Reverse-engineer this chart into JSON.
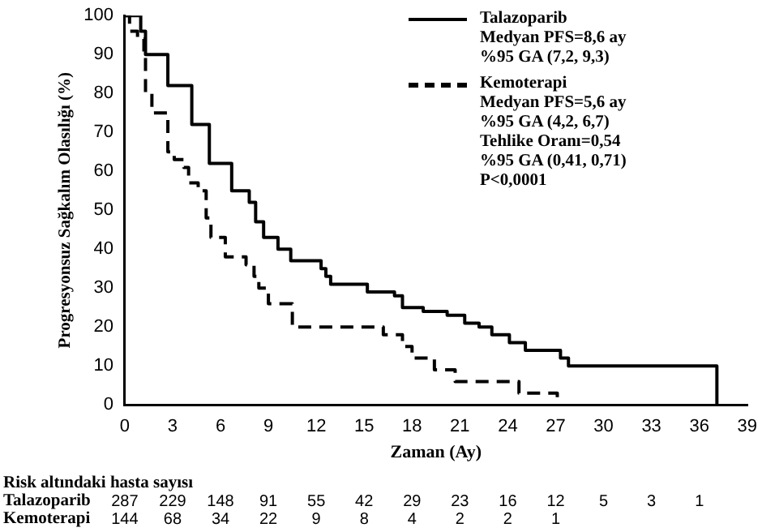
{
  "chart_data": {
    "type": "step",
    "xlabel": "Zaman (Ay)",
    "ylabel": "Progresyonsuz Sağkalım Olasılığı (%)",
    "series": [
      {
        "name": "Talazoparib",
        "color": "#000000",
        "line_style": "solid",
        "x": [
          0,
          1.0,
          1.3,
          2.7,
          4.2,
          5.3,
          6.7,
          7.8,
          8.2,
          8.7,
          9.6,
          10.4,
          12.3,
          12.6,
          12.9,
          15.2,
          16.9,
          17.4,
          18.7,
          20.2,
          21.3,
          22.2,
          23.0,
          24.1,
          25.1,
          27.3,
          27.8,
          37.1
        ],
        "values": [
          100,
          96,
          90,
          82,
          72,
          62,
          55,
          52,
          47,
          43,
          40,
          37,
          35,
          33,
          31,
          29,
          28,
          25,
          24,
          23,
          21,
          20,
          18,
          16,
          14,
          12,
          10,
          0
        ]
      },
      {
        "name": "Kemoterapi",
        "color": "#000000",
        "line_style": "dashed",
        "x": [
          0,
          0.3,
          0.8,
          1.2,
          1.3,
          1.7,
          2.7,
          3.1,
          3.7,
          4.0,
          4.6,
          5.1,
          5.4,
          6.3,
          7.6,
          8.1,
          8.4,
          9.0,
          10.5,
          16.2,
          17.4,
          18.0,
          19.4,
          20.7,
          24.7,
          27.1
        ],
        "values": [
          100,
          96,
          94,
          90,
          80,
          75,
          65,
          63,
          61,
          57,
          55,
          48,
          43,
          38,
          36,
          33,
          30,
          26,
          20,
          18,
          15,
          12,
          9,
          6,
          3,
          1
        ]
      }
    ],
    "xlim": [
      0,
      39
    ],
    "xticks": [
      0,
      3,
      6,
      9,
      12,
      15,
      18,
      21,
      24,
      27,
      30,
      33,
      36,
      39
    ],
    "ylim": [
      0,
      100
    ],
    "yticks": [
      0,
      10,
      20,
      30,
      40,
      50,
      60,
      70,
      80,
      90,
      100
    ],
    "grid": false,
    "legend": "top right",
    "marker": "none",
    "annotations": [
      "Medyan PFS=8,6 ay",
      "%95 GA (7,2, 9,3)",
      "Medyan PFS=5,6 ay",
      "%95 GA (4,2, 6,7)",
      "Tehlike Oranı=0,54",
      "%95 GA (0,41, 0,71)",
      "P<0,0001",
      "Risk altındaki hasta sayısı",
      "Talazoparib 287 229 148 91 55 42 29 23 16 12 5 3 1",
      "Kemoterapi 144 68 34 22 9 8 4 2 2 1"
    ]
  }
}
